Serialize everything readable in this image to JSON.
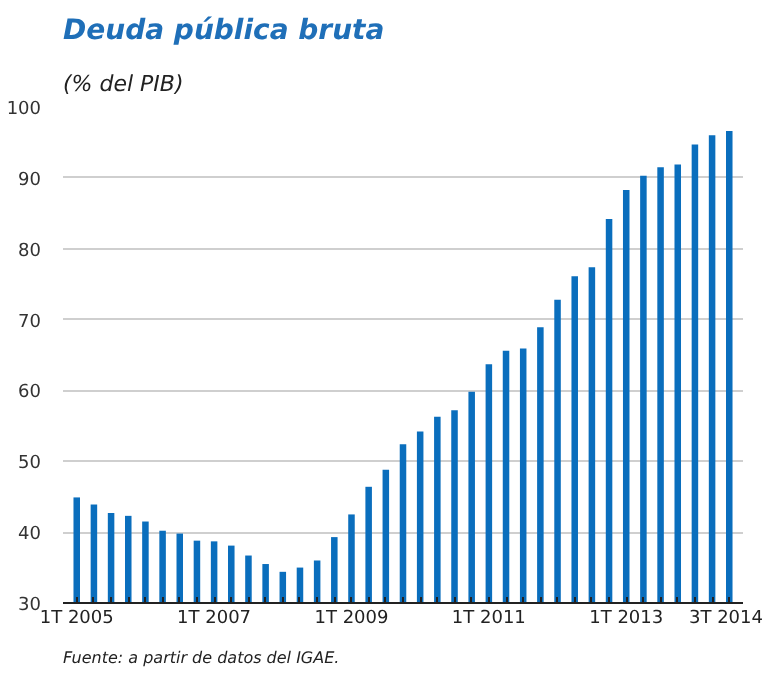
{
  "chart_data": {
    "type": "bar",
    "title": "Deuda pública bruta",
    "subtitle": "(% del PIB)",
    "categories": [
      "1T 2005",
      null,
      null,
      null,
      null,
      null,
      null,
      null,
      "1T 2007",
      null,
      null,
      null,
      null,
      null,
      null,
      null,
      "1T 2009",
      null,
      null,
      null,
      null,
      null,
      null,
      null,
      "1T 2011",
      null,
      null,
      null,
      null,
      null,
      null,
      null,
      "1T 2013",
      null,
      null,
      null,
      null,
      null,
      "3T 2014"
    ],
    "values": [
      44.9,
      43.9,
      42.7,
      42.3,
      41.5,
      40.2,
      39.8,
      38.8,
      38.7,
      38.1,
      36.7,
      35.5,
      34.4,
      35.0,
      36.0,
      39.3,
      42.5,
      46.4,
      48.8,
      52.4,
      54.2,
      56.3,
      57.2,
      59.8,
      63.7,
      65.6,
      65.9,
      68.9,
      72.8,
      76.1,
      77.4,
      84.2,
      88.3,
      90.3,
      91.5,
      91.9,
      94.7,
      96.0,
      96.6
    ],
    "color": "#0a6ebd",
    "ylim": [
      30,
      100
    ],
    "yticks": [
      30,
      40,
      50,
      60,
      70,
      80,
      90,
      100
    ],
    "grid": "y",
    "annotations": [
      "Fuente: a partir de datos del IGAE."
    ]
  }
}
